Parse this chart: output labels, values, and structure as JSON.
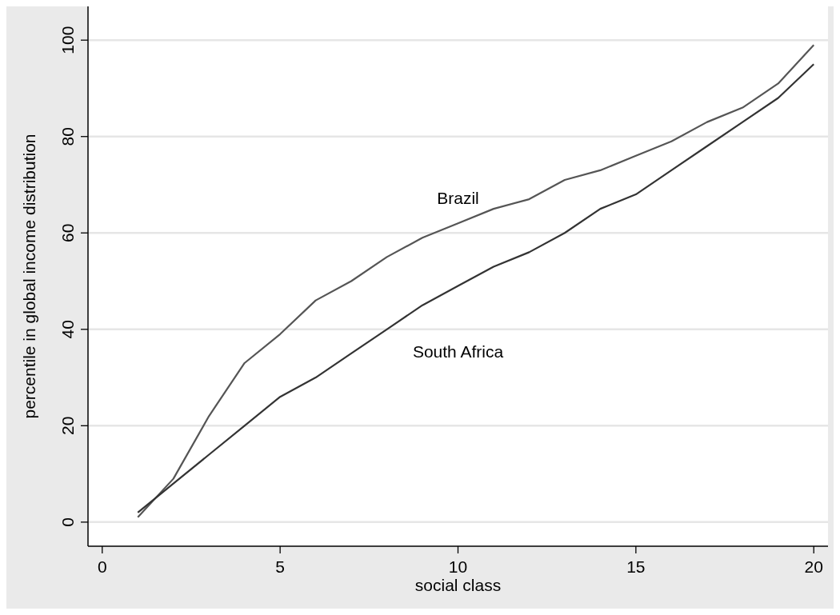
{
  "chart_data": {
    "type": "line",
    "xlabel": "social class",
    "ylabel": "percentile in global income distribution",
    "x": [
      1,
      2,
      3,
      4,
      5,
      6,
      7,
      8,
      9,
      10,
      11,
      12,
      13,
      14,
      15,
      16,
      17,
      18,
      19,
      20
    ],
    "series": [
      {
        "name": "Brazil",
        "color": "#555555",
        "values": [
          1,
          9,
          22,
          33,
          39,
          46,
          50,
          55,
          59,
          62,
          65,
          67,
          71,
          73,
          76,
          79,
          83,
          86,
          91,
          99
        ]
      },
      {
        "name": "South Africa",
        "color": "#333333",
        "values": [
          2,
          8,
          14,
          20,
          26,
          30,
          35,
          40,
          45,
          49,
          53,
          56,
          60,
          65,
          68,
          73,
          78,
          83,
          88,
          95
        ]
      }
    ],
    "xlim": [
      -0.4,
      20.4
    ],
    "ylim": [
      -5,
      107
    ],
    "xticks": [
      0,
      5,
      10,
      15,
      20
    ],
    "yticks": [
      0,
      20,
      40,
      60,
      80,
      100
    ],
    "grid": "y",
    "legend": false,
    "line_style": "solid",
    "marker": "none"
  }
}
